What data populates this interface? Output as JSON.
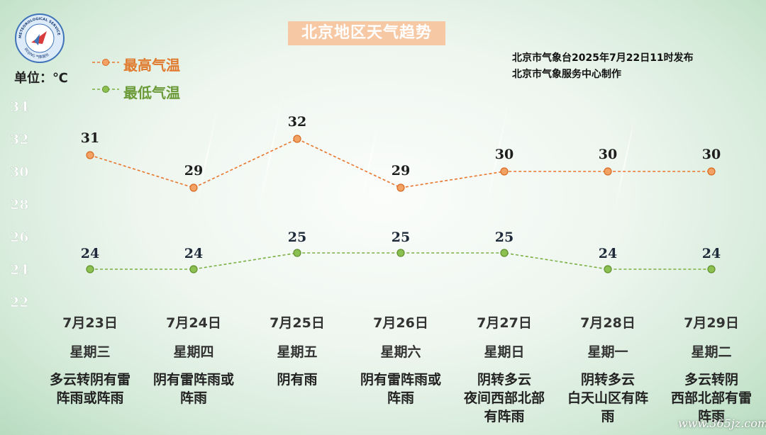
{
  "header": {
    "title": "北京地区天气趋势",
    "unit_label": "单位：℃",
    "source_line1": "北京市气象台2025年7月22日11时发布",
    "source_line2": "北京市气象服务中心制作"
  },
  "logo": {
    "text_top": "METEOROLOGICAL SERVICE",
    "text_bottom": "BEIJING 气象服务"
  },
  "legend": {
    "high_label": "最高气温",
    "low_label": "最低气温"
  },
  "colors": {
    "high": "#e8762c",
    "low": "#7bb043",
    "title_bg": "#f6c8a4"
  },
  "chart_data": {
    "type": "line",
    "title": "北京地区天气趋势",
    "ylabel": "单位：℃",
    "ylim": [
      22,
      34
    ],
    "yticks": [
      34,
      32,
      30,
      28,
      26,
      24,
      22
    ],
    "categories": [
      "7月23日",
      "7月24日",
      "7月25日",
      "7月26日",
      "7月27日",
      "7月28日",
      "7月29日"
    ],
    "series": [
      {
        "name": "最高气温",
        "values": [
          31,
          29,
          32,
          29,
          30,
          30,
          30
        ]
      },
      {
        "name": "最低气温",
        "values": [
          24,
          24,
          25,
          25,
          25,
          24,
          24
        ]
      }
    ]
  },
  "days": [
    {
      "date": "7月23日",
      "weekday": "星期三",
      "weather": [
        "多云转阴有雷",
        "阵雨或阵雨"
      ]
    },
    {
      "date": "7月24日",
      "weekday": "星期四",
      "weather": [
        "阴有雷阵雨或",
        "阵雨"
      ]
    },
    {
      "date": "7月25日",
      "weekday": "星期五",
      "weather": [
        "阴有雨"
      ]
    },
    {
      "date": "7月26日",
      "weekday": "星期六",
      "weather": [
        "阴有雷阵雨或",
        "阵雨"
      ]
    },
    {
      "date": "7月27日",
      "weekday": "星期日",
      "weather": [
        "阴转多云",
        "夜间西部北部",
        "有阵雨"
      ]
    },
    {
      "date": "7月28日",
      "weekday": "星期一",
      "weather": [
        "阴转多云",
        "白天山区有阵",
        "雨"
      ]
    },
    {
      "date": "7月29日",
      "weekday": "星期二",
      "weather": [
        "多云转阴",
        "西部北部有雷",
        "阵雨"
      ]
    }
  ],
  "watermark": "www.365jz.com"
}
